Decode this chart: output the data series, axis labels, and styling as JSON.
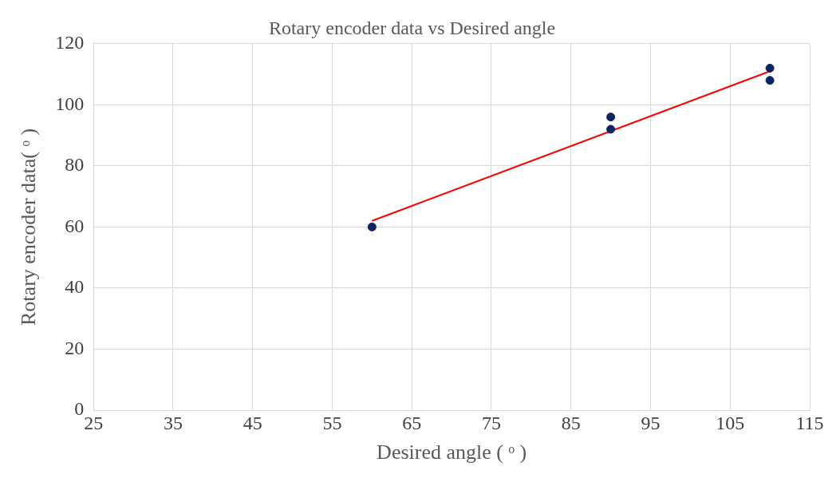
{
  "chart_data": {
    "type": "scatter",
    "title": "Rotary encoder data vs Desired angle",
    "xlabel": "Desired angle ( ᵒ )",
    "ylabel": "Rotary encoder data( ᵒ )",
    "series": [
      {
        "color": "#0b2560",
        "x": [
          60,
          90,
          90,
          110,
          110
        ],
        "values": [
          60,
          96,
          92,
          112,
          108
        ]
      },
      {
        "type": "line",
        "color": "#ff0000",
        "x": [
          60,
          110
        ],
        "values": [
          62,
          111
        ],
        "marker": "none"
      }
    ],
    "xlim": [
      25,
      115
    ],
    "xticks": [
      25,
      35,
      45,
      55,
      65,
      75,
      85,
      95,
      105,
      115
    ],
    "ylim": [
      0,
      120
    ],
    "yticks": [
      0,
      20,
      40,
      60,
      80,
      100,
      120
    ],
    "grid": true,
    "legend": false,
    "marker": "circle"
  }
}
